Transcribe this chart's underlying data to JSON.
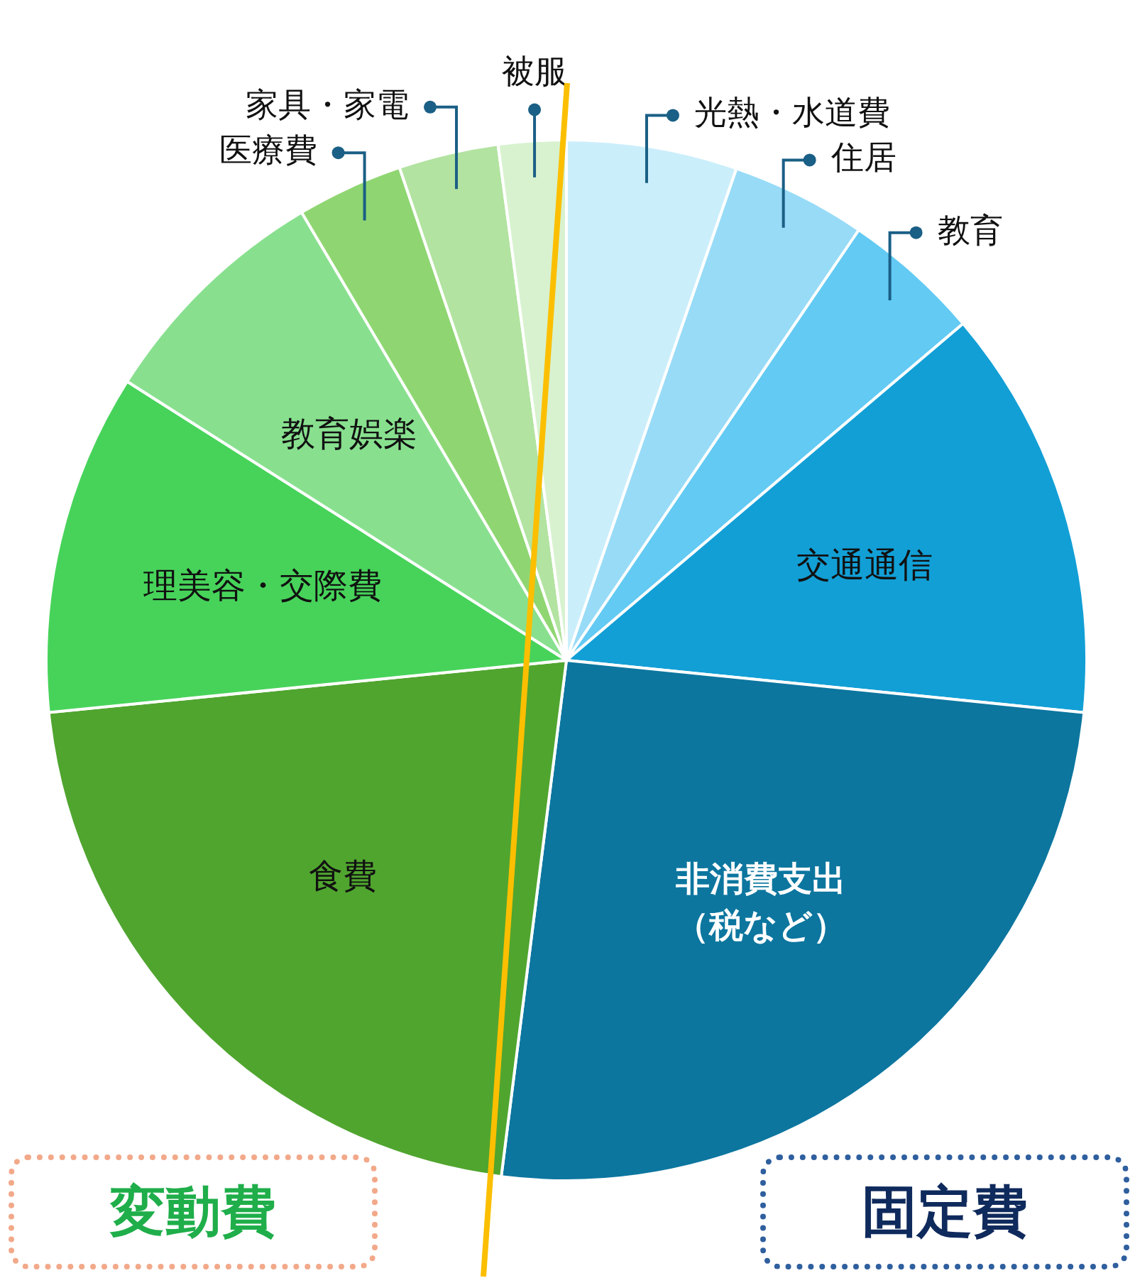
{
  "chart_data": {
    "type": "pie",
    "categories": [
      "光熱・水道費",
      "住居",
      "教育",
      "交通通信",
      "非消費支出（税など）",
      "食費",
      "理美容・交際費",
      "教育娯楽",
      "医療費",
      "家具・家電",
      "被服"
    ],
    "values": [
      5.3,
      4.2,
      4.3,
      12.8,
      25.4,
      21.4,
      10.6,
      7.5,
      3.3,
      3.1,
      2.1
    ],
    "colors": [
      "#cbeefb",
      "#97dbf7",
      "#62caf3",
      "#129fd6",
      "#0c769f",
      "#50a52f",
      "#47d35a",
      "#88e08f",
      "#8fd672",
      "#b2e3a1",
      "#d8f2d0"
    ],
    "annotations": [
      "変動費",
      "固定費"
    ]
  }
}
